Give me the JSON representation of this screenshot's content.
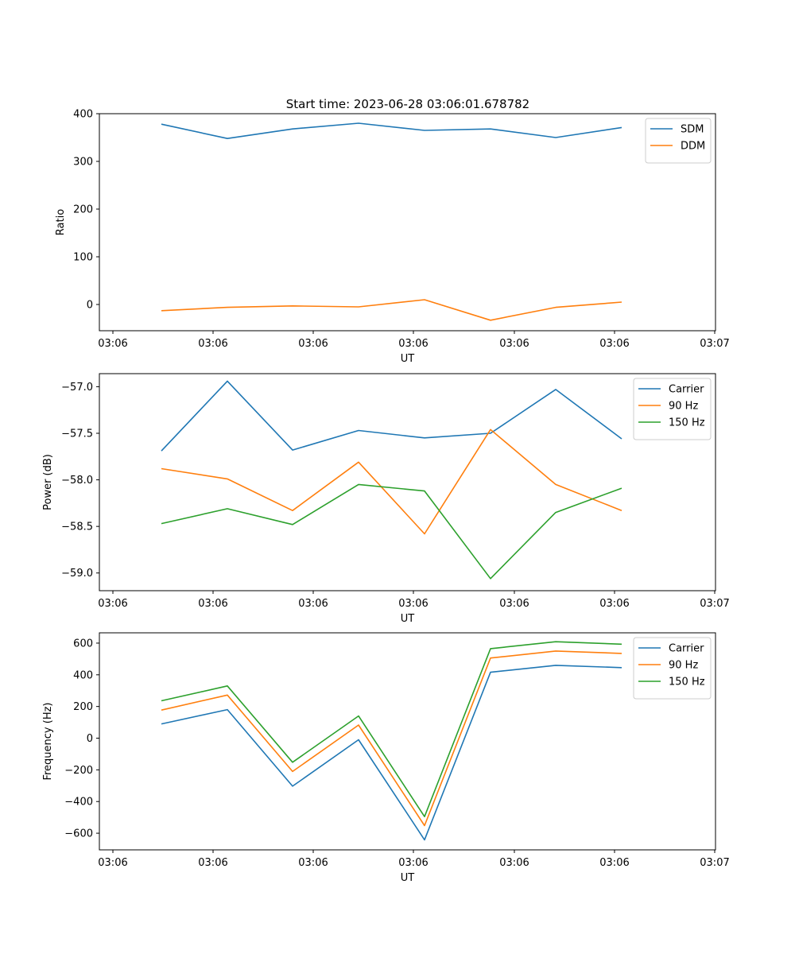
{
  "figure_title": "Start time: 2023-06-28 03:06:01.678782",
  "colors": {
    "tab_blue": "#1f77b4",
    "tab_orange": "#ff7f0e",
    "tab_green": "#2ca02c"
  },
  "chart_data": [
    {
      "type": "line",
      "title": "Start time: 2023-06-28 03:06:01.678782",
      "xlabel": "UT",
      "ylabel": "Ratio",
      "x_tick_labels": [
        "03:06",
        "03:06",
        "03:06",
        "03:06",
        "03:06",
        "03:06",
        "03:06"
      ],
      "last_x_tick_label": "03:07",
      "y_ticks": [
        0,
        100,
        200,
        300,
        400
      ],
      "y_tick_labels": [
        "0",
        "100",
        "200",
        "300",
        "400"
      ],
      "ylim": [
        -55,
        400
      ],
      "legend": "top-right",
      "series": [
        {
          "name": "SDM",
          "color": "#1f77b4",
          "values": [
            378,
            348,
            368,
            380,
            365,
            368,
            350,
            371
          ]
        },
        {
          "name": "DDM",
          "color": "#ff7f0e",
          "values": [
            -13,
            -6,
            -3,
            -5,
            10,
            -33,
            -6,
            5
          ]
        }
      ]
    },
    {
      "type": "line",
      "xlabel": "UT",
      "ylabel": "Power (dB)",
      "x_tick_labels": [
        "03:06",
        "03:06",
        "03:06",
        "03:06",
        "03:06",
        "03:06",
        "03:06"
      ],
      "last_x_tick_label": "03:07",
      "y_ticks": [
        -59.0,
        -58.5,
        -58.0,
        -57.5,
        -57.0
      ],
      "y_tick_labels": [
        "−59.0",
        "−58.5",
        "−58.0",
        "−57.5",
        "−57.0"
      ],
      "ylim": [
        -59.19,
        -56.86
      ],
      "legend": "top-right",
      "series": [
        {
          "name": "Carrier",
          "color": "#1f77b4",
          "values": [
            -57.69,
            -56.94,
            -57.68,
            -57.47,
            -57.55,
            -57.5,
            -57.03,
            -57.56
          ]
        },
        {
          "name": "90 Hz",
          "color": "#ff7f0e",
          "values": [
            -57.88,
            -57.99,
            -58.33,
            -57.81,
            -58.58,
            -57.46,
            -58.05,
            -58.33
          ]
        },
        {
          "name": "150 Hz",
          "color": "#2ca02c",
          "values": [
            -58.47,
            -58.31,
            -58.48,
            -58.05,
            -58.12,
            -59.06,
            -58.35,
            -58.09
          ]
        }
      ]
    },
    {
      "type": "line",
      "xlabel": "UT",
      "ylabel": "Frequency (Hz)",
      "x_tick_labels": [
        "03:06",
        "03:06",
        "03:06",
        "03:06",
        "03:06",
        "03:06",
        "03:06"
      ],
      "last_x_tick_label": "03:07",
      "y_ticks": [
        -600,
        -400,
        -200,
        0,
        200,
        400,
        600
      ],
      "y_tick_labels": [
        "−600",
        "−400",
        "−200",
        "0",
        "200",
        "400",
        "600"
      ],
      "ylim": [
        -705,
        665
      ],
      "legend": "top-right",
      "series": [
        {
          "name": "Carrier",
          "color": "#1f77b4",
          "values": [
            90,
            180,
            -303,
            -10,
            -642,
            416,
            460,
            445
          ]
        },
        {
          "name": "90 Hz",
          "color": "#ff7f0e",
          "values": [
            177,
            272,
            -210,
            83,
            -552,
            506,
            550,
            535
          ]
        },
        {
          "name": "150 Hz",
          "color": "#2ca02c",
          "values": [
            236,
            330,
            -152,
            140,
            -495,
            565,
            609,
            593
          ]
        }
      ]
    }
  ]
}
